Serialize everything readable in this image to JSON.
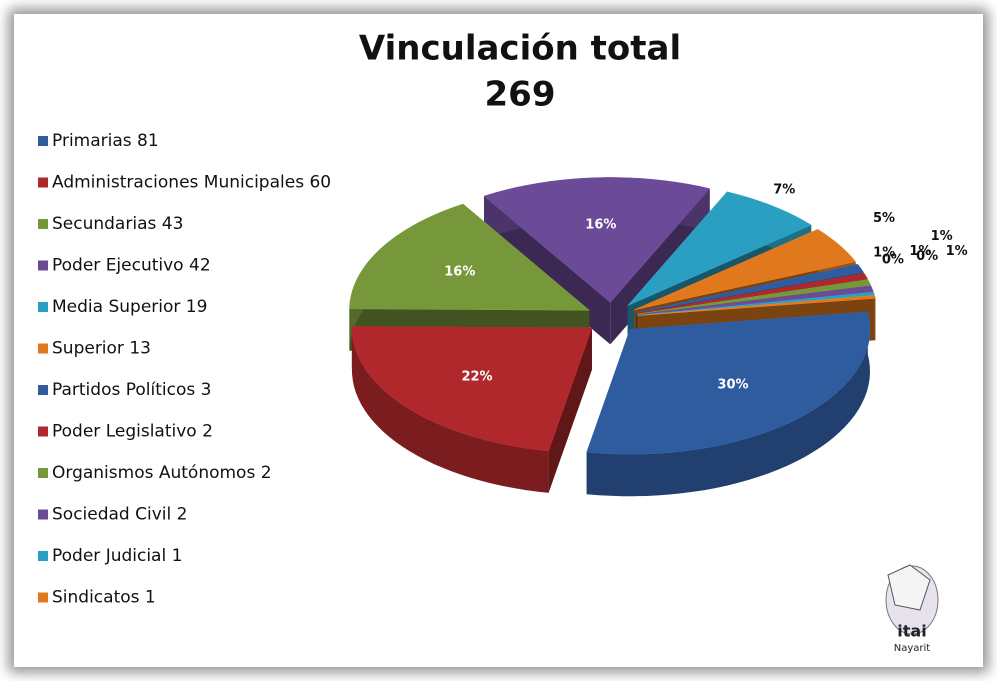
{
  "chart_data": {
    "type": "pie3d",
    "title": "Vinculación total",
    "subtitle": "269",
    "categories": [
      "Primarias",
      "Administraciones Municipales",
      "Secundarias",
      "Poder Ejecutivo",
      "Media Superior",
      "Superior",
      "Partidos Políticos",
      "Poder Legislativo",
      "Organismos Autónomos",
      "Sociedad Civil",
      "Poder Judicial",
      "Sindicatos"
    ],
    "values": [
      81,
      60,
      43,
      42,
      19,
      13,
      3,
      2,
      2,
      2,
      1,
      1
    ],
    "value_labels": [
      "30%",
      "22%",
      "16%",
      "16%",
      "7%",
      "5%",
      "1%",
      "1%",
      "1%",
      "1%",
      "0%",
      "0%"
    ],
    "colors": [
      "#2f5c9e",
      "#b0282b",
      "#77973b",
      "#6b4a98",
      "#2b9fc1",
      "#e0791d",
      "#2f5c9e",
      "#b0282b",
      "#77973b",
      "#6b4a98",
      "#2b9fc1",
      "#e0791d"
    ],
    "legend": "left",
    "logo": {
      "text": "itai",
      "subtext": "Nayarit"
    }
  }
}
